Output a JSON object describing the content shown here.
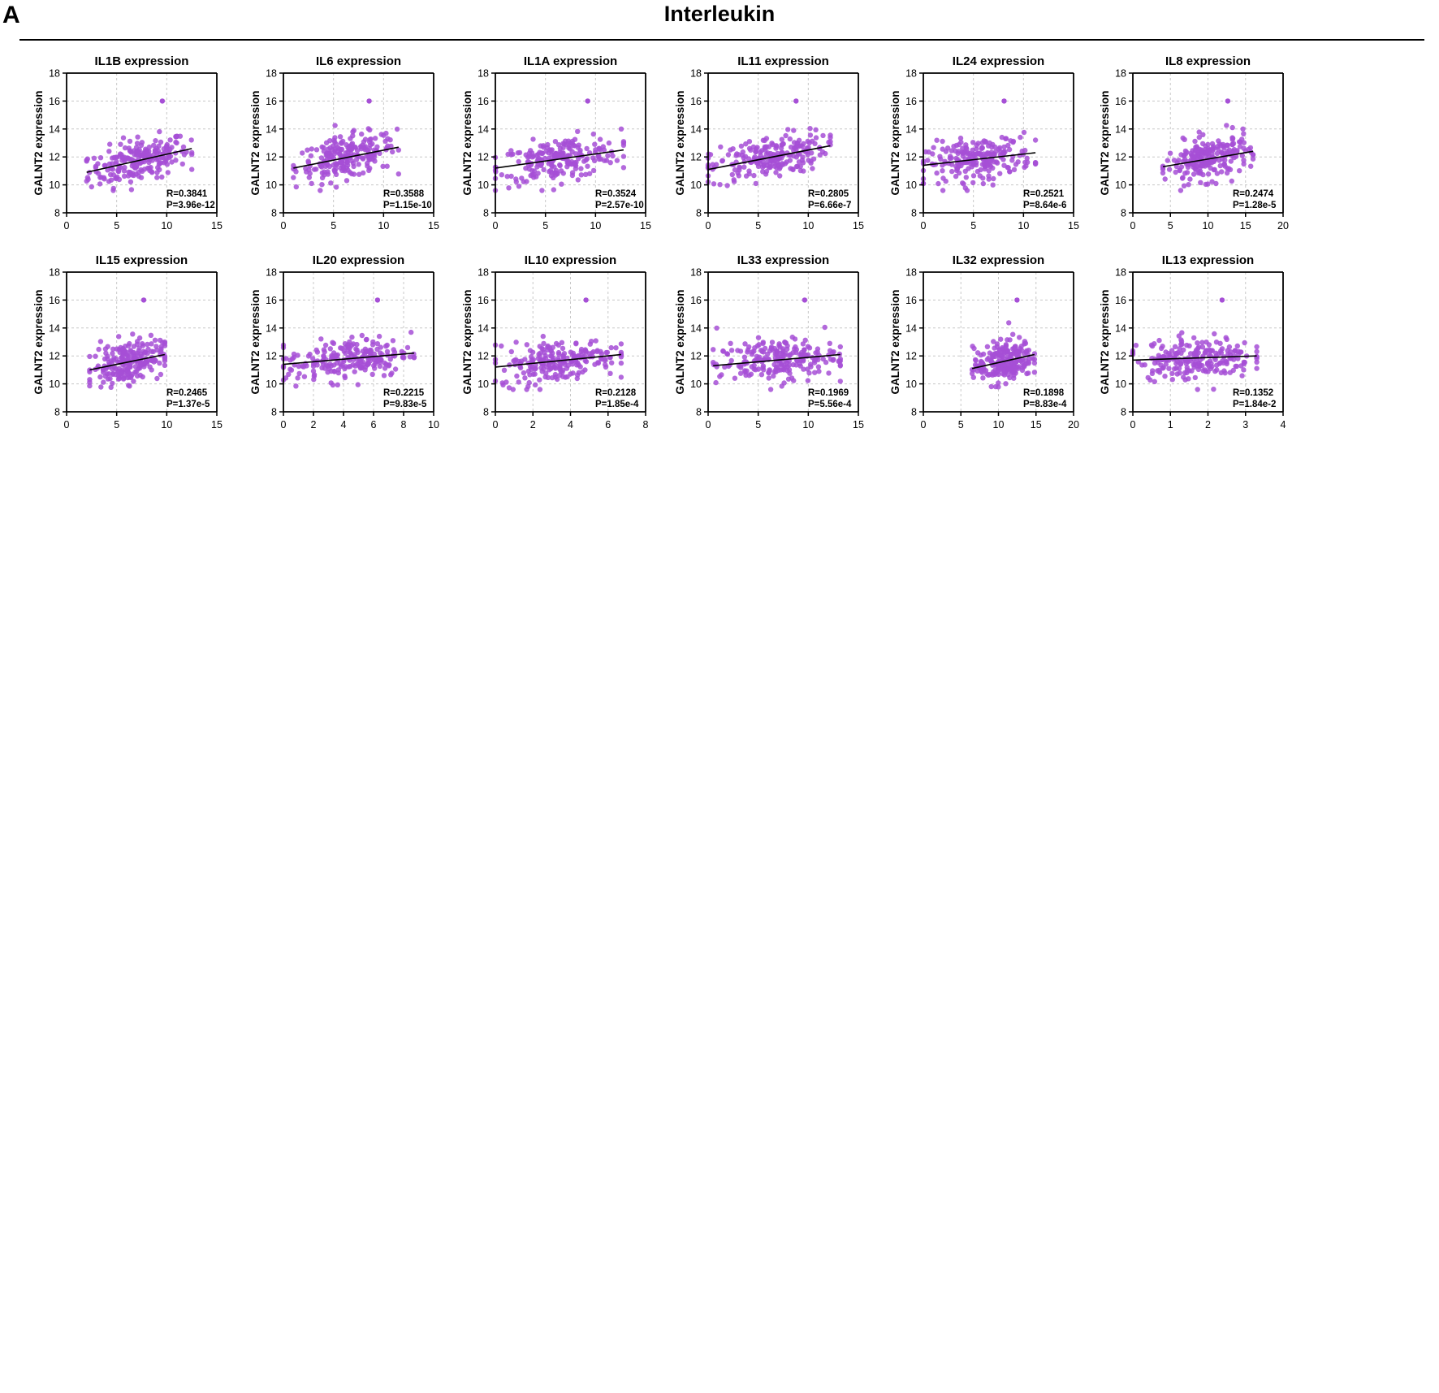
{
  "sections": [
    {
      "letter": "A",
      "title": "Interleukin",
      "color": "#a64fd6",
      "plots": [
        {
          "gene": "IL1B",
          "title": "IL1B expression",
          "xticks": [
            "0",
            "5",
            "10",
            "15"
          ],
          "xmax": 15,
          "xmin_data": 2,
          "xmax_data": 12.5,
          "y0": 10.9,
          "y1": 12.6,
          "r": "R=0.3841",
          "p": "P=3.96e-12"
        },
        {
          "gene": "IL6",
          "title": "IL6 expression",
          "xticks": [
            "0",
            "5",
            "10",
            "15"
          ],
          "xmax": 15,
          "xmin_data": 1,
          "xmax_data": 11.5,
          "y0": 11.2,
          "y1": 12.7,
          "r": "R=0.3588",
          "p": "P=1.15e-10"
        },
        {
          "gene": "IL1A",
          "title": "IL1A expression",
          "xticks": [
            "0",
            "5",
            "10",
            "15"
          ],
          "xmax": 15,
          "xmin_data": 0,
          "xmax_data": 12.8,
          "y0": 11.2,
          "y1": 12.5,
          "r": "R=0.3524",
          "p": "P=2.57e-10"
        },
        {
          "gene": "IL11",
          "title": "IL11 expression",
          "xticks": [
            "0",
            "5",
            "10",
            "15"
          ],
          "xmax": 15,
          "xmin_data": 0,
          "xmax_data": 12.2,
          "y0": 11.1,
          "y1": 12.8,
          "r": "R=0.2805",
          "p": "P=6.66e-7"
        },
        {
          "gene": "IL24",
          "title": "IL24 expression",
          "xticks": [
            "0",
            "5",
            "10",
            "15"
          ],
          "xmax": 15,
          "xmin_data": 0,
          "xmax_data": 11.2,
          "y0": 11.4,
          "y1": 12.3,
          "r": "R=0.2521",
          "p": "P=8.64e-6"
        },
        {
          "gene": "IL8",
          "title": "IL8 expression",
          "xticks": [
            "0",
            "5",
            "10",
            "15",
            "20"
          ],
          "xmax": 20,
          "xmin_data": 4,
          "xmax_data": 16,
          "y0": 11.3,
          "y1": 12.4,
          "r": "R=0.2474",
          "p": "P=1.28e-5"
        },
        {
          "gene": "IL15",
          "title": "IL15 expression",
          "xticks": [
            "0",
            "5",
            "10",
            "15"
          ],
          "xmax": 15,
          "xmin_data": 2.3,
          "xmax_data": 9.8,
          "y0": 11.0,
          "y1": 12.1,
          "r": "R=0.2465",
          "p": "P=1.37e-5"
        },
        {
          "gene": "IL20",
          "title": "IL20 expression",
          "xticks": [
            "0",
            "2",
            "4",
            "6",
            "8",
            "10"
          ],
          "xmax": 10,
          "xmin_data": 0,
          "xmax_data": 8.7,
          "y0": 11.4,
          "y1": 12.2,
          "r": "R=0.2215",
          "p": "P=9.83e-5"
        },
        {
          "gene": "IL10",
          "title": "IL10 expression",
          "xticks": [
            "0",
            "2",
            "4",
            "6",
            "8"
          ],
          "xmax": 8,
          "xmin_data": 0,
          "xmax_data": 6.7,
          "y0": 11.2,
          "y1": 12.1,
          "r": "R=0.2128",
          "p": "P=1.85e-4"
        },
        {
          "gene": "IL33",
          "title": "IL33 expression",
          "xticks": [
            "0",
            "5",
            "10",
            "15"
          ],
          "xmax": 15,
          "xmin_data": 0.5,
          "xmax_data": 13.2,
          "y0": 11.3,
          "y1": 12.1,
          "r": "R=0.1969",
          "p": "P=5.56e-4"
        },
        {
          "gene": "IL32",
          "title": "IL32 expression",
          "xticks": [
            "0",
            "5",
            "10",
            "15",
            "20"
          ],
          "xmax": 20,
          "xmin_data": 6.5,
          "xmax_data": 14.8,
          "y0": 11.1,
          "y1": 12.1,
          "r": "R=0.1898",
          "p": "P=8.83e-4"
        },
        {
          "gene": "IL13",
          "title": "IL13 expression",
          "xticks": [
            "0",
            "1",
            "2",
            "3",
            "4"
          ],
          "xmax": 4,
          "xmin_data": 0,
          "xmax_data": 3.3,
          "y0": 11.7,
          "y1": 12.0,
          "r": "R=0.1352",
          "p": "P=1.84e-2"
        }
      ]
    }
  ],
  "chart_data": [
    {
      "type": "scatter",
      "title": "IL1B expression",
      "ylabel": "GALNT2 expression",
      "xlim": [
        0,
        15
      ],
      "ylim": [
        8,
        18
      ],
      "fit_line": [
        [
          2,
          10.9
        ],
        [
          12.5,
          12.6
        ]
      ],
      "annotations": [
        "R=0.3841",
        "P=3.96e-12"
      ]
    },
    {
      "type": "scatter",
      "title": "IL6 expression",
      "ylabel": "GALNT2 expression",
      "xlim": [
        0,
        15
      ],
      "ylim": [
        8,
        18
      ],
      "fit_line": [
        [
          1,
          11.2
        ],
        [
          11.5,
          12.7
        ]
      ],
      "annotations": [
        "R=0.3588",
        "P=1.15e-10"
      ]
    },
    {
      "type": "scatter",
      "title": "IL1A expression",
      "ylabel": "GALNT2 expression",
      "xlim": [
        0,
        15
      ],
      "ylim": [
        8,
        18
      ],
      "fit_line": [
        [
          0,
          11.2
        ],
        [
          12.8,
          12.5
        ]
      ],
      "annotations": [
        "R=0.3524",
        "P=2.57e-10"
      ]
    },
    {
      "type": "scatter",
      "title": "IL11 expression",
      "ylabel": "GALNT2 expression",
      "xlim": [
        0,
        15
      ],
      "ylim": [
        8,
        18
      ],
      "fit_line": [
        [
          0,
          11.1
        ],
        [
          12.2,
          12.8
        ]
      ],
      "annotations": [
        "R=0.2805",
        "P=6.66e-7"
      ]
    },
    {
      "type": "scatter",
      "title": "IL24 expression",
      "ylabel": "GALNT2 expression",
      "xlim": [
        0,
        15
      ],
      "ylim": [
        8,
        18
      ],
      "fit_line": [
        [
          0,
          11.4
        ],
        [
          11.2,
          12.3
        ]
      ],
      "annotations": [
        "R=0.2521",
        "P=8.64e-6"
      ]
    },
    {
      "type": "scatter",
      "title": "IL8 expression",
      "ylabel": "GALNT2 expression",
      "xlim": [
        0,
        20
      ],
      "ylim": [
        8,
        18
      ],
      "fit_line": [
        [
          4,
          11.3
        ],
        [
          16,
          12.4
        ]
      ],
      "annotations": [
        "R=0.2474",
        "P=1.28e-5"
      ]
    },
    {
      "type": "scatter",
      "title": "IL15 expression",
      "ylabel": "GALNT2 expression",
      "xlim": [
        0,
        15
      ],
      "ylim": [
        8,
        18
      ],
      "fit_line": [
        [
          2.3,
          11.0
        ],
        [
          9.8,
          12.1
        ]
      ],
      "annotations": [
        "R=0.2465",
        "P=1.37e-5"
      ]
    },
    {
      "type": "scatter",
      "title": "IL20 expression",
      "ylabel": "GALNT2 expression",
      "xlim": [
        0,
        10
      ],
      "ylim": [
        8,
        18
      ],
      "fit_line": [
        [
          0,
          11.4
        ],
        [
          8.7,
          12.2
        ]
      ],
      "annotations": [
        "R=0.2215",
        "P=9.83e-5"
      ]
    },
    {
      "type": "scatter",
      "title": "IL10 expression",
      "ylabel": "GALNT2 expression",
      "xlim": [
        0,
        8
      ],
      "ylim": [
        8,
        18
      ],
      "fit_line": [
        [
          0,
          11.2
        ],
        [
          6.7,
          12.1
        ]
      ],
      "annotations": [
        "R=0.2128",
        "P=1.85e-4"
      ]
    },
    {
      "type": "scatter",
      "title": "IL33 expression",
      "ylabel": "GALNT2 expression",
      "xlim": [
        0,
        15
      ],
      "ylim": [
        8,
        18
      ],
      "fit_line": [
        [
          0.5,
          11.3
        ],
        [
          13.2,
          12.1
        ]
      ],
      "annotations": [
        "R=0.1969",
        "P=5.56e-4"
      ]
    },
    {
      "type": "scatter",
      "title": "IL32 expression",
      "ylabel": "GALNT2 expression",
      "xlim": [
        0,
        20
      ],
      "ylim": [
        8,
        18
      ],
      "fit_line": [
        [
          6.5,
          11.1
        ],
        [
          14.8,
          12.1
        ]
      ],
      "annotations": [
        "R=0.1898",
        "P=8.83e-4"
      ]
    },
    {
      "type": "scatter",
      "title": "IL13 expression",
      "ylabel": "GALNT2 expression",
      "xlim": [
        0,
        4
      ],
      "ylim": [
        8,
        18
      ],
      "fit_line": [
        [
          0,
          11.7
        ],
        [
          3.3,
          12.0
        ]
      ],
      "annotations": [
        "R=0.1352",
        "P=1.84e-2"
      ]
    }
  ],
  "common": {
    "ylabel": "GALNT2 expression",
    "yticks": [
      "8",
      "10",
      "12",
      "14",
      "16",
      "18"
    ]
  }
}
